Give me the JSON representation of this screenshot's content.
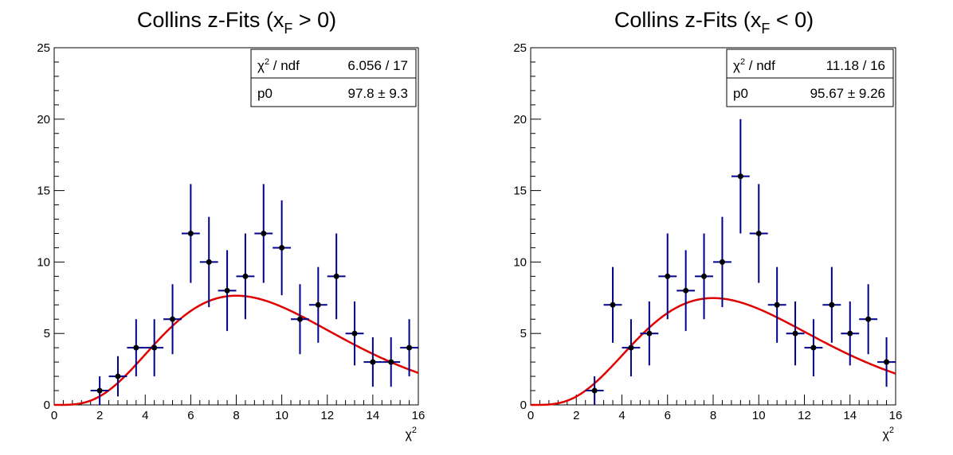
{
  "chart_data": [
    {
      "type": "scatter",
      "title": "Collins z-Fits (x",
      "title_sub": "F",
      "title_tail": " > 0)",
      "xlabel": "χ",
      "xlabel_sup": "2",
      "xlim": [
        0,
        16
      ],
      "ylim": [
        0,
        25
      ],
      "x_ticks": [
        "0",
        "2",
        "4",
        "6",
        "8",
        "10",
        "12",
        "14",
        "16"
      ],
      "y_ticks": [
        "0",
        "5",
        "10",
        "15",
        "20",
        "25"
      ],
      "grid": false,
      "legend": "top-right",
      "stats": {
        "row1_label": "χ",
        "row1_label_sup": "2",
        "row1_label_tail": " / ndf",
        "row1_value": "6.056 / 17",
        "row2_label": "p0",
        "row2_value": "97.8 ± 9.3"
      },
      "bin_halfwidth": 0.4,
      "points": [
        {
          "x": 2.0,
          "y": 1,
          "err": 1.0
        },
        {
          "x": 2.8,
          "y": 2,
          "err": 1.41
        },
        {
          "x": 3.6,
          "y": 4,
          "err": 2.0
        },
        {
          "x": 4.4,
          "y": 4,
          "err": 2.0
        },
        {
          "x": 5.2,
          "y": 6,
          "err": 2.45
        },
        {
          "x": 6.0,
          "y": 12,
          "err": 3.46
        },
        {
          "x": 6.8,
          "y": 10,
          "err": 3.16
        },
        {
          "x": 7.6,
          "y": 8,
          "err": 2.83
        },
        {
          "x": 8.4,
          "y": 9,
          "err": 3.0
        },
        {
          "x": 9.2,
          "y": 12,
          "err": 3.46
        },
        {
          "x": 10.0,
          "y": 11,
          "err": 3.32
        },
        {
          "x": 10.8,
          "y": 6,
          "err": 2.45
        },
        {
          "x": 11.6,
          "y": 7,
          "err": 2.65
        },
        {
          "x": 12.4,
          "y": 9,
          "err": 3.0
        },
        {
          "x": 13.2,
          "y": 5,
          "err": 2.24
        },
        {
          "x": 14.0,
          "y": 3,
          "err": 1.73
        },
        {
          "x": 14.8,
          "y": 3,
          "err": 1.73
        },
        {
          "x": 15.6,
          "y": 4,
          "err": 2.0
        }
      ],
      "fit": {
        "p0": 97.8,
        "x_end": 16
      }
    },
    {
      "type": "scatter",
      "title": "Collins z-Fits (x",
      "title_sub": "F",
      "title_tail": " < 0)",
      "xlabel": "χ",
      "xlabel_sup": "2",
      "xlim": [
        0,
        16
      ],
      "ylim": [
        0,
        25
      ],
      "x_ticks": [
        "0",
        "2",
        "4",
        "6",
        "8",
        "10",
        "12",
        "14",
        "16"
      ],
      "y_ticks": [
        "0",
        "5",
        "10",
        "15",
        "20",
        "25"
      ],
      "grid": false,
      "legend": "top-right",
      "stats": {
        "row1_label": "χ",
        "row1_label_sup": "2",
        "row1_label_tail": " / ndf",
        "row1_value": "11.18 / 16",
        "row2_label": "p0",
        "row2_value": "95.67 ± 9.26"
      },
      "bin_halfwidth": 0.4,
      "points": [
        {
          "x": 2.8,
          "y": 1,
          "err": 1.0
        },
        {
          "x": 3.6,
          "y": 7,
          "err": 2.65
        },
        {
          "x": 4.4,
          "y": 4,
          "err": 2.0
        },
        {
          "x": 5.2,
          "y": 5,
          "err": 2.24
        },
        {
          "x": 6.0,
          "y": 9,
          "err": 3.0
        },
        {
          "x": 6.8,
          "y": 8,
          "err": 2.83
        },
        {
          "x": 7.6,
          "y": 9,
          "err": 3.0
        },
        {
          "x": 8.4,
          "y": 10,
          "err": 3.16
        },
        {
          "x": 9.2,
          "y": 16,
          "err": 4.0
        },
        {
          "x": 10.0,
          "y": 12,
          "err": 3.46
        },
        {
          "x": 10.8,
          "y": 7,
          "err": 2.65
        },
        {
          "x": 11.6,
          "y": 5,
          "err": 2.24
        },
        {
          "x": 12.4,
          "y": 4,
          "err": 2.0
        },
        {
          "x": 13.2,
          "y": 7,
          "err": 2.65
        },
        {
          "x": 14.0,
          "y": 5,
          "err": 2.24
        },
        {
          "x": 14.8,
          "y": 6,
          "err": 2.45
        },
        {
          "x": 15.6,
          "y": 3,
          "err": 1.73
        }
      ],
      "fit": {
        "p0": 95.67,
        "x_end": 16
      }
    }
  ],
  "colors": {
    "points": "#000000",
    "error_bars": "#00008b",
    "fit": "#e00000",
    "axes": "#000000"
  }
}
